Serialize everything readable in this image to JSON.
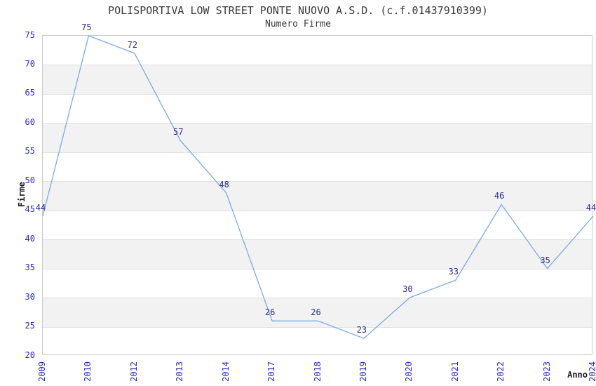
{
  "chart_data": {
    "type": "line",
    "title": "POLISPORTIVA LOW STREET PONTE NUOVO A.S.D. (c.f.01437910399)",
    "subtitle": "Numero Firme",
    "xlabel": "Anno",
    "ylabel": "Firme",
    "categories": [
      "2009",
      "2010",
      "2012",
      "2013",
      "2014",
      "2017",
      "2018",
      "2019",
      "2020",
      "2021",
      "2022",
      "2023",
      "2024"
    ],
    "values": [
      44,
      75,
      72,
      57,
      48,
      26,
      26,
      23,
      30,
      33,
      46,
      35,
      44
    ],
    "ylim": [
      20,
      75
    ],
    "ytick_step": 5,
    "grid": true,
    "banded_background": true,
    "legend": "none",
    "colors": {
      "line": "#77aae8",
      "point_label": "#29298e",
      "tick_label": "#2727cc",
      "band": "#f2f2f2",
      "gridline": "#e1e1e1",
      "plot_border": "#c9c9c9",
      "title_text": "#3a3a3a",
      "axis_title_text": "#1a1a1a"
    }
  }
}
